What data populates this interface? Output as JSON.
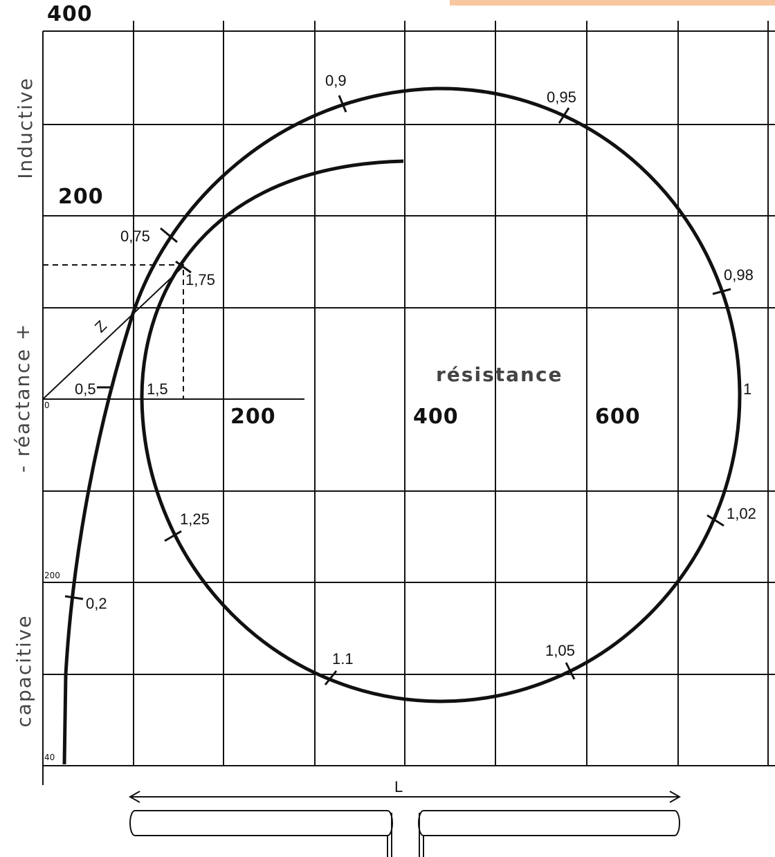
{
  "axes": {
    "y_labels": [
      "400",
      "200"
    ],
    "x_labels": [
      "200",
      "400",
      "600"
    ],
    "small_labels": [
      "0",
      "200",
      "40"
    ],
    "side_labels": [
      "Inductive",
      "- réactance +",
      "capacitive"
    ],
    "x_title": "résistance"
  },
  "markers": [
    "0,9",
    "0,95",
    "0,75",
    "1,75",
    "0,98",
    "0,5",
    "1,5",
    "1",
    "1,25",
    "1,02",
    "0,2",
    "1,05",
    "1.1"
  ],
  "z_label": "Z",
  "length_label": "L"
}
